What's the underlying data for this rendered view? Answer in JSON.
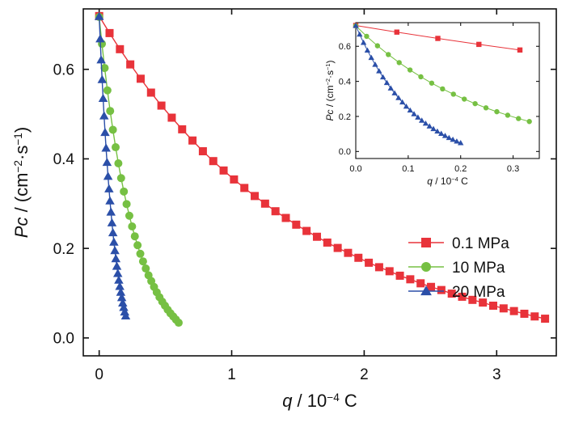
{
  "chart_data": [
    {
      "type": "line",
      "panel": "main",
      "xlabel": {
        "var": "q",
        "unit": " / 10",
        "sup": "−4",
        "tail": " C"
      },
      "ylabel": {
        "var": "Pc",
        "unit": " / (cm",
        "sup1": "−2",
        "mid": "·s",
        "sup2": "−1",
        "tail": ")"
      },
      "xlim": [
        -0.12,
        3.45
      ],
      "ylim": [
        -0.04,
        0.735
      ],
      "xticks": [
        0,
        1,
        2,
        3
      ],
      "xtick_labels": [
        "0",
        "1",
        "2",
        "3"
      ],
      "yticks": [
        0.0,
        0.2,
        0.4,
        0.6
      ],
      "ytick_labels": [
        "0.0",
        "0.2",
        "0.4",
        "0.6"
      ],
      "legend_position": "center-right",
      "series": [
        {
          "name": "0.1 MPa",
          "color": "#e8333a",
          "marker": "square",
          "x": [
            0,
            0.0783,
            0.1565,
            0.2348,
            0.313,
            0.3913,
            0.4696,
            0.5478,
            0.6261,
            0.7043,
            0.7826,
            0.8609,
            0.9391,
            1.0174,
            1.0957,
            1.1739,
            1.2522,
            1.3304,
            1.4087,
            1.487,
            1.5652,
            1.6435,
            1.7217,
            1.8,
            1.8783,
            1.9565,
            2.0348,
            2.113,
            2.1913,
            2.2696,
            2.3478,
            2.4261,
            2.5043,
            2.5826,
            2.6609,
            2.7391,
            2.8174,
            2.8957,
            2.9739,
            3.0522,
            3.1304,
            3.2087,
            3.287,
            3.3652
          ],
          "y": [
            0.719,
            0.681,
            0.645,
            0.611,
            0.579,
            0.548,
            0.519,
            0.492,
            0.466,
            0.441,
            0.417,
            0.395,
            0.374,
            0.354,
            0.335,
            0.317,
            0.3,
            0.283,
            0.268,
            0.253,
            0.239,
            0.226,
            0.213,
            0.201,
            0.19,
            0.179,
            0.168,
            0.158,
            0.149,
            0.139,
            0.131,
            0.122,
            0.114,
            0.107,
            0.099,
            0.092,
            0.085,
            0.079,
            0.072,
            0.066,
            0.06,
            0.054,
            0.048,
            0.043
          ]
        },
        {
          "name": "10 MPa",
          "color": "#76c043",
          "marker": "circle",
          "x": [
            0,
            0.0207,
            0.0414,
            0.0621,
            0.0828,
            0.1034,
            0.1241,
            0.1448,
            0.1655,
            0.1862,
            0.2069,
            0.2276,
            0.2483,
            0.269,
            0.2897,
            0.3103,
            0.331,
            0.3517,
            0.3724,
            0.3931,
            0.4138,
            0.4345,
            0.4552,
            0.4759,
            0.4966,
            0.5172,
            0.5379,
            0.5586,
            0.5793,
            0.6
          ],
          "y": [
            0.717,
            0.657,
            0.603,
            0.553,
            0.507,
            0.465,
            0.426,
            0.39,
            0.357,
            0.327,
            0.299,
            0.273,
            0.249,
            0.227,
            0.207,
            0.188,
            0.171,
            0.155,
            0.14,
            0.127,
            0.114,
            0.102,
            0.091,
            0.081,
            0.072,
            0.063,
            0.055,
            0.048,
            0.041,
            0.034
          ]
        },
        {
          "name": "20 MPa",
          "color": "#2b4fa8",
          "marker": "triangle",
          "x": [
            0,
            0.0074,
            0.0148,
            0.0222,
            0.0296,
            0.037,
            0.0444,
            0.0519,
            0.0593,
            0.0667,
            0.0741,
            0.0815,
            0.0889,
            0.0963,
            0.1037,
            0.1111,
            0.1185,
            0.1259,
            0.1333,
            0.1407,
            0.1481,
            0.1556,
            0.163,
            0.1704,
            0.1778,
            0.1852,
            0.1926,
            0.2
          ],
          "y": [
            0.718,
            0.668,
            0.621,
            0.577,
            0.535,
            0.496,
            0.459,
            0.424,
            0.392,
            0.361,
            0.333,
            0.306,
            0.281,
            0.257,
            0.235,
            0.214,
            0.195,
            0.177,
            0.16,
            0.144,
            0.129,
            0.115,
            0.102,
            0.09,
            0.078,
            0.068,
            0.058,
            0.049
          ]
        }
      ]
    },
    {
      "type": "line",
      "panel": "inset",
      "xlabel": {
        "var": "q",
        "unit": " / 10",
        "sup": "−4",
        "tail": " C"
      },
      "ylabel": {
        "var": "Pc",
        "unit": " / (cm",
        "sup1": "−2",
        "mid": "·s",
        "sup2": "−1",
        "tail": ")"
      },
      "xlim": [
        0,
        0.35
      ],
      "ylim": [
        -0.04,
        0.735
      ],
      "xticks": [
        0.0,
        0.1,
        0.2,
        0.3
      ],
      "xtick_labels": [
        "0.0",
        "0.1",
        "0.2",
        "0.3"
      ],
      "yticks": [
        0.0,
        0.2,
        0.4,
        0.6
      ],
      "ytick_labels": [
        "0.0",
        "0.2",
        "0.4",
        "0.6"
      ]
    }
  ]
}
